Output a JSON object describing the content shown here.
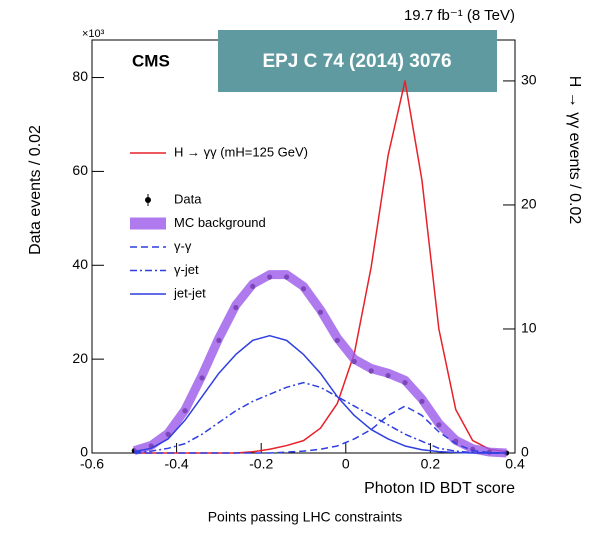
{
  "chart_data": {
    "type": "line",
    "title": "EPJ C 74 (2014) 3076",
    "experiment": "CMS",
    "lumi": "19.7 fb⁻¹ (8 TeV)",
    "y_multiplier": "×10³",
    "x_label": "Photon ID BDT score",
    "y_label": "Data events / 0.02",
    "y2_label": "H → γγ events / 0.02",
    "caption": "Points passing LHC constraints",
    "xlim": [
      -0.6,
      0.4
    ],
    "xticks": [
      -0.6,
      -0.4,
      -0.2,
      0,
      0.2,
      0.4
    ],
    "ylim": [
      0,
      88
    ],
    "yticks": [
      0,
      20,
      40,
      60,
      80
    ],
    "y2lim": [
      0,
      33.3
    ],
    "y2ticks": [
      0,
      10,
      20,
      30
    ],
    "x": [
      -0.5,
      -0.46,
      -0.42,
      -0.38,
      -0.34,
      -0.3,
      -0.26,
      -0.22,
      -0.18,
      -0.14,
      -0.1,
      -0.06,
      -0.02,
      0.02,
      0.06,
      0.1,
      0.14,
      0.18,
      0.22,
      0.26,
      0.3,
      0.34,
      0.38
    ],
    "series": [
      {
        "name": "H → γγ (mH=125 GeV)",
        "color": "#e8202a",
        "style": "solid",
        "axis": "y2",
        "values": [
          0,
          0,
          0,
          0,
          0,
          0,
          0,
          0.1,
          0.3,
          0.6,
          1,
          2,
          4,
          8,
          15,
          24,
          30,
          22,
          10,
          3.5,
          1,
          0.3,
          0.1
        ]
      },
      {
        "name": "Data",
        "color": "#000000",
        "style": "points",
        "values": [
          0.5,
          1.5,
          4,
          9,
          16,
          24,
          31,
          35.5,
          37.5,
          37.5,
          35,
          30,
          24,
          19.5,
          17.5,
          16.5,
          15,
          11,
          6,
          2.5,
          0.8,
          0.2,
          0
        ]
      },
      {
        "name": "MC background",
        "color": "#9b59e8",
        "style": "band",
        "values": [
          0.5,
          1.6,
          4.2,
          9.2,
          16.5,
          24.5,
          31.5,
          36,
          38,
          38,
          35.5,
          30.5,
          24.5,
          20,
          18,
          17,
          15.5,
          11.5,
          6.3,
          2.7,
          0.9,
          0.2,
          0
        ]
      },
      {
        "name": "γ-γ",
        "color": "#2f3fe0",
        "style": "dashed",
        "values": [
          0,
          0,
          0,
          0,
          0,
          0,
          0,
          0,
          0,
          0.2,
          0.4,
          0.8,
          1.5,
          3,
          5,
          8,
          10,
          8,
          4.5,
          2,
          0.5,
          0.1,
          0
        ]
      },
      {
        "name": "γ-jet",
        "color": "#2f3fe0",
        "style": "dashdot",
        "values": [
          0.1,
          0.4,
          1,
          2,
          4,
          6.5,
          9,
          11,
          12.5,
          14,
          15,
          14,
          12,
          10,
          8,
          6,
          4,
          2.5,
          1,
          0.4,
          0.1,
          0,
          0
        ]
      },
      {
        "name": "jet-jet",
        "color": "#2f3fe0",
        "style": "solid",
        "values": [
          0.3,
          1,
          3,
          7,
          12,
          17,
          21,
          24,
          25,
          24,
          21,
          17,
          12,
          8,
          5,
          3,
          1.5,
          0.7,
          0.3,
          0.1,
          0,
          0,
          0
        ]
      }
    ]
  }
}
